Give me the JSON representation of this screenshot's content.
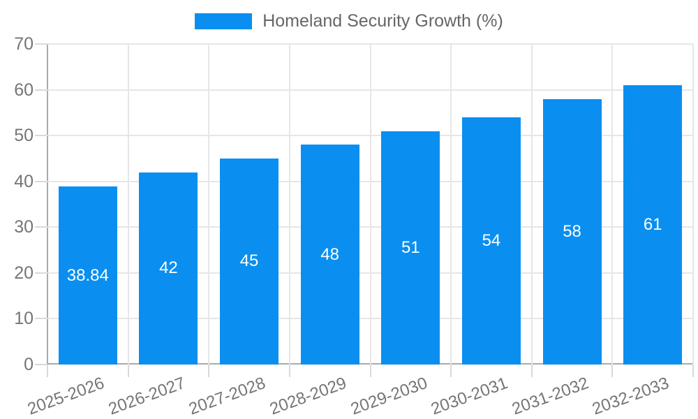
{
  "chart_data": {
    "type": "bar",
    "title": "Homeland Security Growth (%)",
    "categories": [
      "2025-2026",
      "2026-2027",
      "2027-2028",
      "2028-2029",
      "2029-2030",
      "2030-2031",
      "2031-2032",
      "2032-2033"
    ],
    "series": [
      {
        "name": "Homeland Security Growth (%)",
        "values": [
          38.84,
          42,
          45,
          48,
          51,
          54,
          58,
          61
        ],
        "value_labels": [
          "38.84",
          "42",
          "45",
          "48",
          "51",
          "54",
          "58",
          "61"
        ]
      }
    ],
    "xlabel": "",
    "ylabel": "",
    "ylim": [
      0,
      70
    ],
    "ytick_step": 10,
    "ytick_labels": [
      "0",
      "10",
      "20",
      "30",
      "40",
      "50",
      "60",
      "70"
    ],
    "grid": true,
    "legend_position": "top",
    "x_label_rotation_deg": -20,
    "colors": {
      "bar": "#0a8ff0",
      "value_label_text": "#ffffff",
      "axis_text": "#757575",
      "legend_text": "#666666",
      "grid_line": "#e6e6e6",
      "tick_line": "#d9d9d9",
      "axis_line": "#aaaaaa",
      "background": "#ffffff"
    }
  }
}
